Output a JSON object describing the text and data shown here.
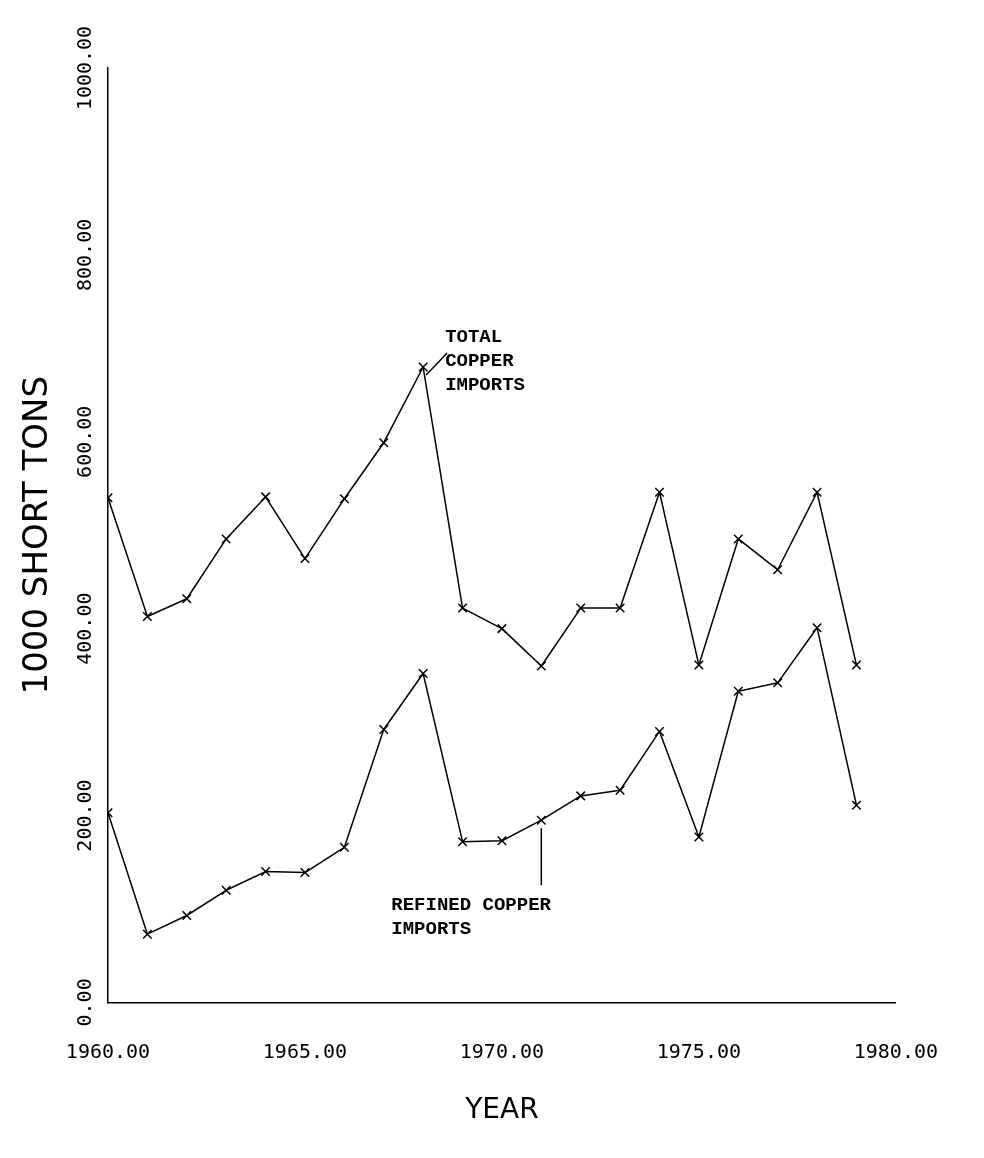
{
  "chart_data": {
    "type": "line",
    "xlabel": "YEAR",
    "ylabel": "1000 SHORT TONS",
    "marker": "cross",
    "grid": false,
    "legend": false,
    "x": [
      1960,
      1961,
      1962,
      1963,
      1964,
      1965,
      1966,
      1967,
      1968,
      1969,
      1970,
      1971,
      1972,
      1973,
      1974,
      1975,
      1976,
      1977,
      1978,
      1979
    ],
    "series": [
      {
        "color": "#000000",
        "values": [
          540,
          413,
          432,
          496,
          541,
          475,
          539,
          599,
          680,
          422,
          400,
          360,
          422,
          422,
          546,
          361,
          496,
          463,
          546,
          361
        ]
      },
      {
        "color": "#000000",
        "values": [
          203,
          73,
          93,
          120,
          140,
          139,
          166,
          292,
          352,
          172,
          173,
          195,
          221,
          227,
          290,
          177,
          333,
          342,
          401,
          211
        ]
      }
    ],
    "xlim": [
      1960,
      1980
    ],
    "xticks": [
      {
        "value": 1960,
        "label": "1960.00"
      },
      {
        "value": 1965,
        "label": "1965.00"
      },
      {
        "value": 1970,
        "label": "1970.00"
      },
      {
        "value": 1975,
        "label": "1975.00"
      },
      {
        "value": 1980,
        "label": "1980.00"
      }
    ],
    "ylim": [
      0,
      1000
    ],
    "yticks": [
      {
        "value": 0,
        "label": "0.00"
      },
      {
        "value": 200,
        "label": "200.00"
      },
      {
        "value": 400,
        "label": "400.00"
      },
      {
        "value": 600,
        "label": "600.00"
      },
      {
        "value": 800,
        "label": "800.00"
      },
      {
        "value": 1000,
        "label": "1000.00"
      }
    ],
    "annotations": [
      {
        "text": "TOTAL\nCOPPER\nIMPORTS",
        "x": 1968,
        "y": 680
      },
      {
        "text": "REFINED COPPER\nIMPORTS",
        "x": 1971,
        "y": 195
      }
    ]
  }
}
